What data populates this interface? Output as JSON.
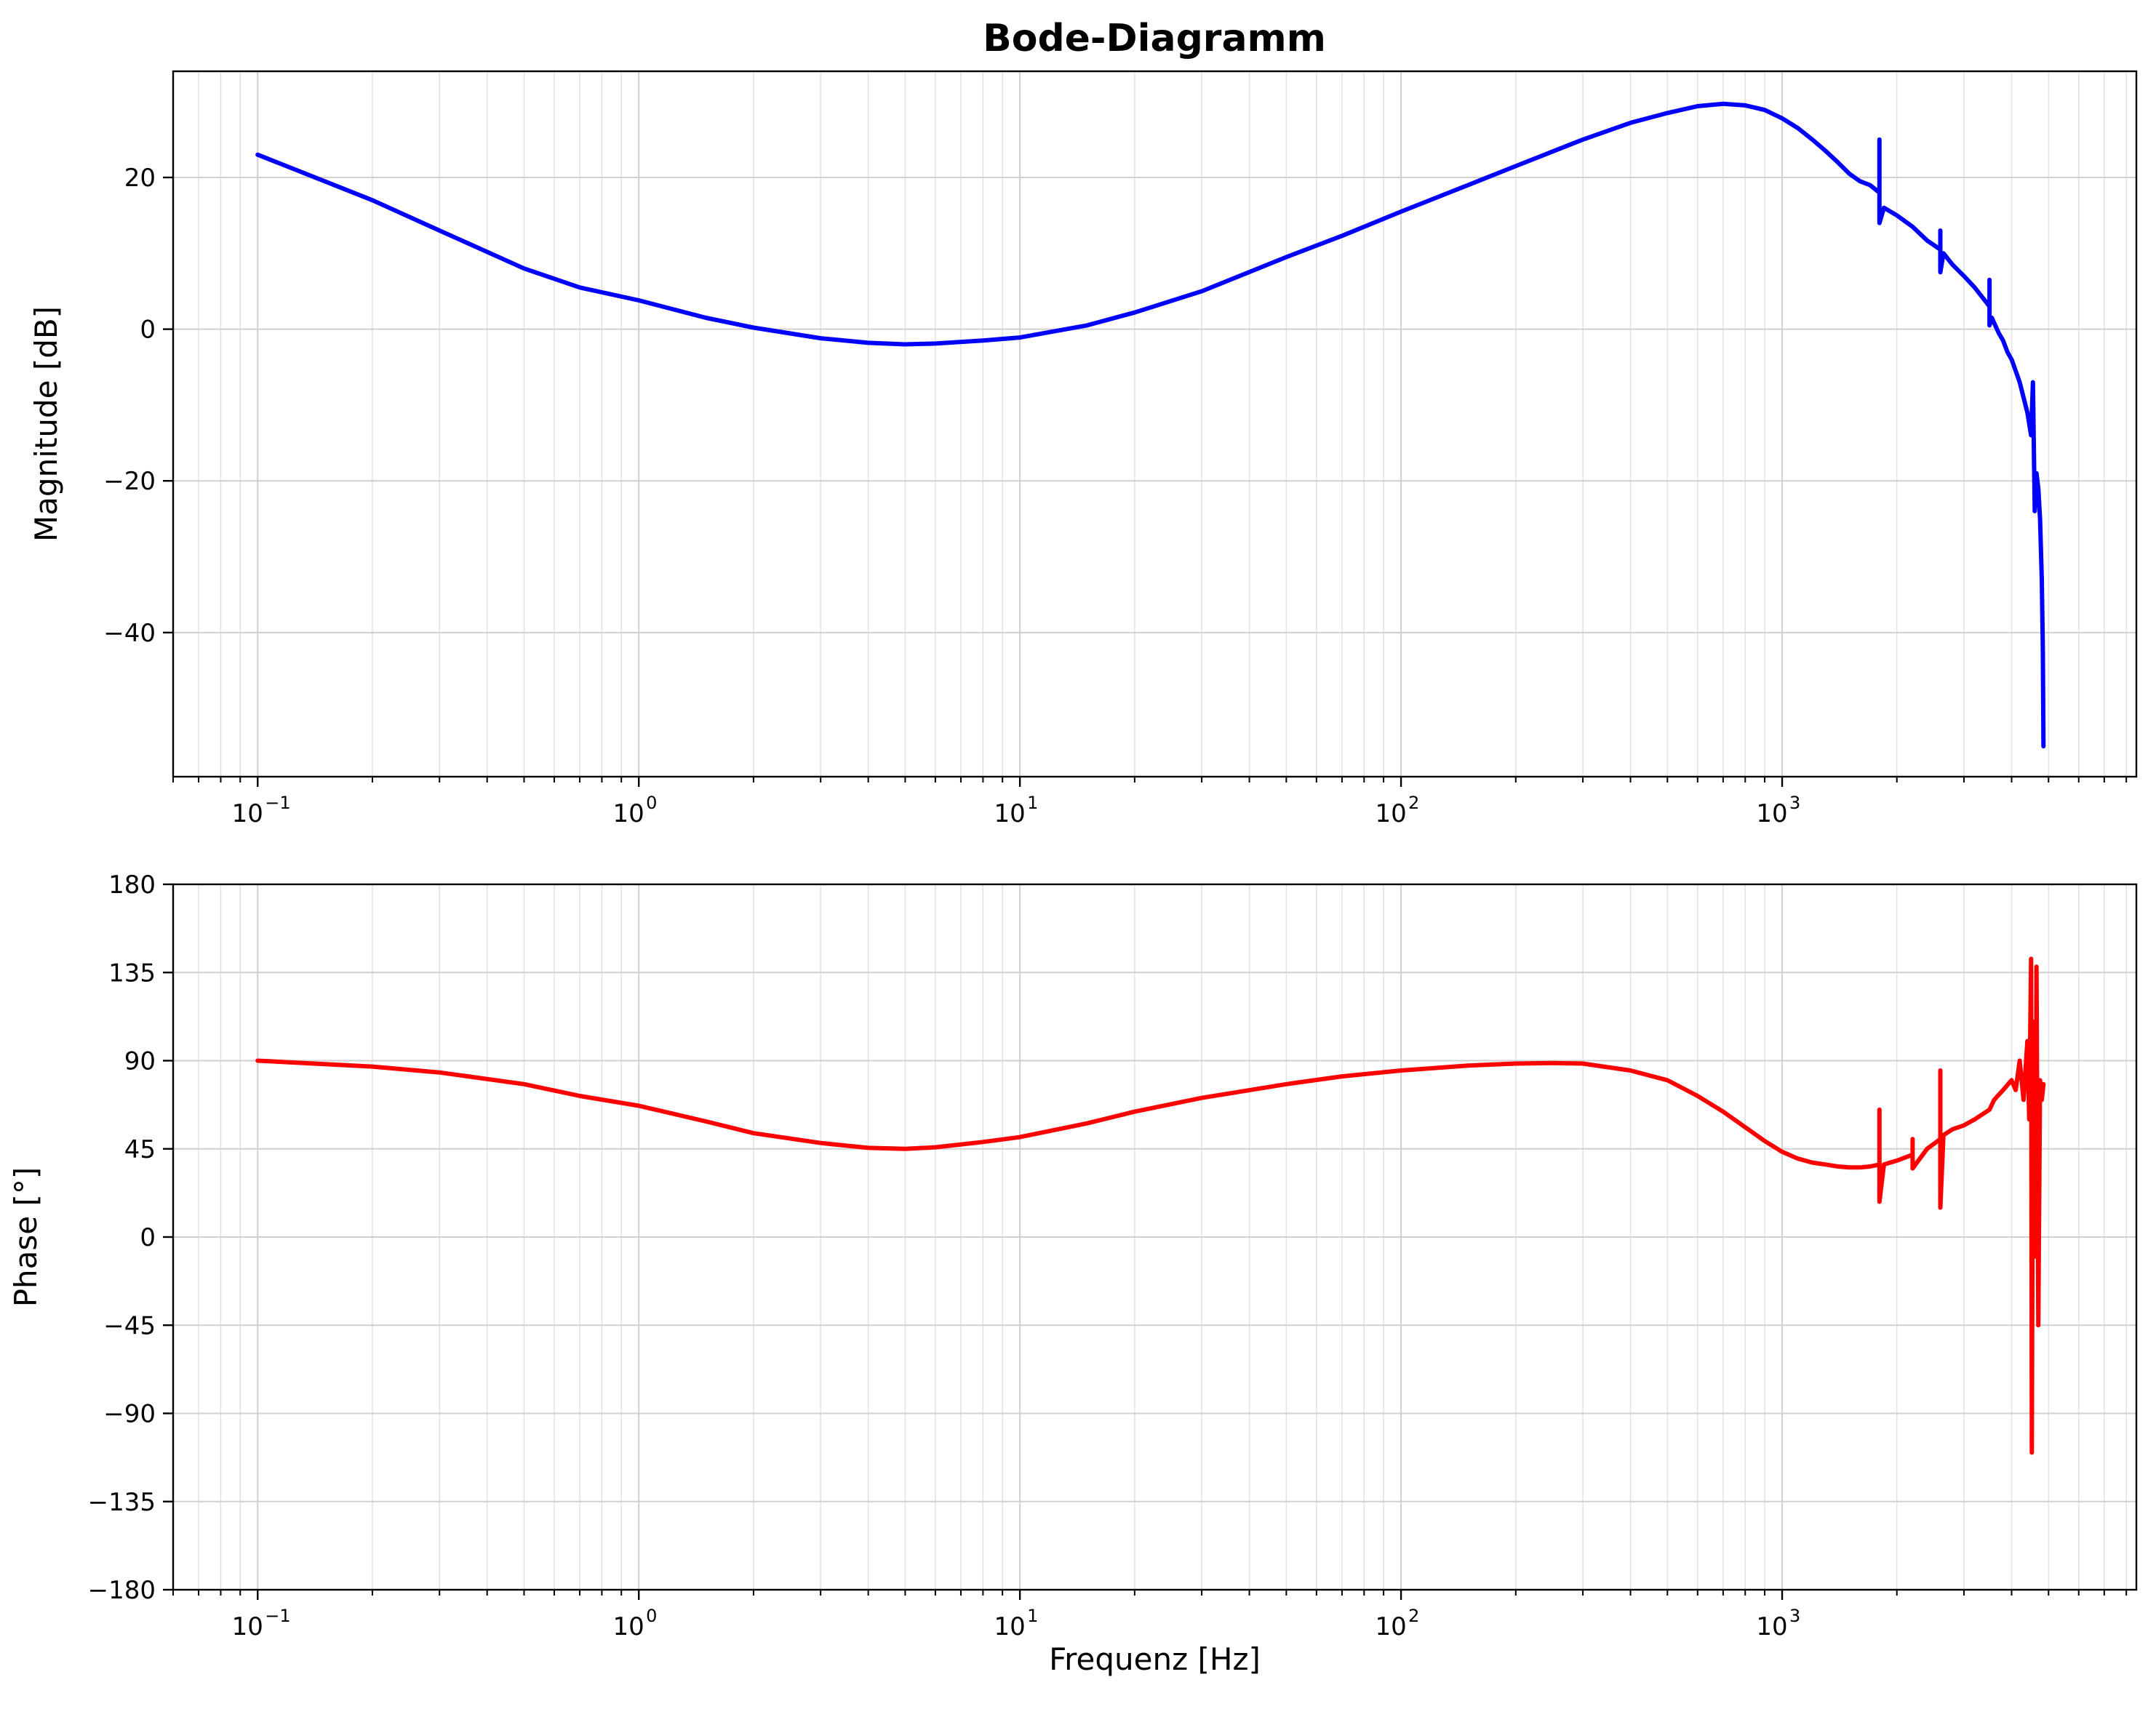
{
  "chart_data": [
    {
      "type": "line",
      "title": "Bode-Diagramm",
      "xlabel": "",
      "ylabel": "Magnitude [dB]",
      "xscale": "log",
      "xlim": [
        0.06,
        8500
      ],
      "ylim": [
        -59,
        34
      ],
      "xticks": [
        {
          "value": 0.1,
          "base": "10",
          "exp": "−1"
        },
        {
          "value": 1,
          "base": "10",
          "exp": "0"
        },
        {
          "value": 10,
          "base": "10",
          "exp": "1"
        },
        {
          "value": 100,
          "base": "10",
          "exp": "2"
        },
        {
          "value": 1000,
          "base": "10",
          "exp": "3"
        }
      ],
      "yticks": [
        {
          "value": 20,
          "label": "20"
        },
        {
          "value": 0,
          "label": "0"
        },
        {
          "value": -20,
          "label": "−20"
        },
        {
          "value": -40,
          "label": "−40"
        }
      ],
      "grid": true,
      "series": [
        {
          "color": "#0000ff",
          "x": [
            0.1,
            0.2,
            0.3,
            0.5,
            0.7,
            1,
            1.5,
            2,
            3,
            4,
            5,
            6,
            8,
            10,
            15,
            20,
            30,
            50,
            70,
            100,
            150,
            200,
            300,
            400,
            500,
            600,
            700,
            800,
            900,
            1000,
            1100,
            1200,
            1300,
            1400,
            1500,
            1600,
            1700,
            1800,
            1800,
            1800,
            1850,
            2000,
            2200,
            2400,
            2600,
            2600,
            2600,
            2650,
            2800,
            3000,
            3200,
            3500,
            3500,
            3500,
            3550,
            3700,
            3800,
            3900,
            4000,
            4100,
            4200,
            4300,
            4400,
            4500,
            4550,
            4600,
            4650,
            4700,
            4750,
            4800,
            4830,
            4850
          ],
          "y": [
            23,
            17,
            13,
            8,
            5.5,
            3.8,
            1.5,
            0.2,
            -1.2,
            -1.8,
            -2,
            -1.9,
            -1.5,
            -1.1,
            0.5,
            2.2,
            5,
            9.5,
            12.3,
            15.5,
            19,
            21.5,
            25,
            27.2,
            28.5,
            29.4,
            29.7,
            29.5,
            28.9,
            27.8,
            26.5,
            25,
            23.5,
            22,
            20.5,
            19.5,
            19,
            18,
            25,
            14,
            16,
            15,
            13.5,
            11.7,
            10.5,
            13,
            7.5,
            10,
            8.5,
            7,
            5.5,
            3,
            6.5,
            0.5,
            1.5,
            -0.5,
            -1.5,
            -3,
            -4,
            -5.5,
            -7,
            -9,
            -11,
            -14,
            -7,
            -24,
            -19,
            -21,
            -25,
            -33,
            -42,
            -55
          ]
        }
      ]
    },
    {
      "type": "line",
      "title": "",
      "xlabel": "Frequenz [Hz]",
      "ylabel": "Phase [°]",
      "xscale": "log",
      "xlim": [
        0.06,
        8500
      ],
      "ylim": [
        -180,
        180
      ],
      "xticks": [
        {
          "value": 0.1,
          "base": "10",
          "exp": "−1"
        },
        {
          "value": 1,
          "base": "10",
          "exp": "0"
        },
        {
          "value": 10,
          "base": "10",
          "exp": "1"
        },
        {
          "value": 100,
          "base": "10",
          "exp": "2"
        },
        {
          "value": 1000,
          "base": "10",
          "exp": "3"
        }
      ],
      "yticks": [
        {
          "value": 180,
          "label": "180"
        },
        {
          "value": 135,
          "label": "135"
        },
        {
          "value": 90,
          "label": "90"
        },
        {
          "value": 45,
          "label": "45"
        },
        {
          "value": 0,
          "label": "0"
        },
        {
          "value": -45,
          "label": "−45"
        },
        {
          "value": -90,
          "label": "−90"
        },
        {
          "value": -135,
          "label": "−135"
        },
        {
          "value": -180,
          "label": "−180"
        }
      ],
      "grid": true,
      "series": [
        {
          "color": "#ff0000",
          "x": [
            0.1,
            0.2,
            0.3,
            0.5,
            0.7,
            1,
            1.5,
            2,
            3,
            4,
            5,
            6,
            8,
            10,
            15,
            20,
            30,
            50,
            70,
            100,
            150,
            200,
            250,
            300,
            400,
            500,
            600,
            700,
            800,
            900,
            1000,
            1100,
            1200,
            1300,
            1400,
            1500,
            1600,
            1700,
            1800,
            1800,
            1800,
            1850,
            2000,
            2200,
            2200,
            2200,
            2400,
            2600,
            2600,
            2600,
            2650,
            2800,
            3000,
            3200,
            3500,
            3600,
            3800,
            4000,
            4100,
            4200,
            4300,
            4400,
            4450,
            4500,
            4520,
            4550,
            4600,
            4620,
            4650,
            4700,
            4750,
            4800,
            4850
          ],
          "y": [
            90,
            87,
            84,
            78,
            72,
            67,
            59,
            53,
            48,
            45.5,
            45,
            45.8,
            48.5,
            51,
            58,
            64,
            71,
            78,
            82,
            85,
            87.5,
            88.5,
            88.8,
            88.5,
            85,
            80,
            72,
            64,
            56,
            49,
            43.5,
            40,
            38,
            37,
            36,
            35.5,
            35.5,
            36,
            37,
            65,
            18,
            37,
            39,
            42,
            50,
            35,
            45,
            50,
            85,
            15,
            52,
            55,
            57,
            60,
            65,
            70,
            75,
            80,
            75,
            90,
            70,
            100,
            60,
            142,
            -110,
            85,
            110,
            -10,
            138,
            -45,
            80,
            70,
            78
          ]
        }
      ]
    }
  ]
}
